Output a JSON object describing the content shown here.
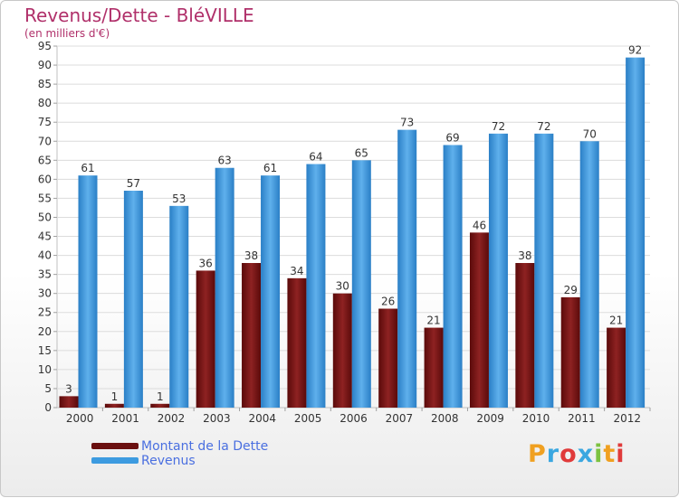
{
  "chart_data": {
    "type": "bar",
    "title": "Revenus/Dette - BléVILLE",
    "subtitle": "(en milliers d'€)",
    "categories": [
      "2000",
      "2001",
      "2002",
      "2003",
      "2004",
      "2005",
      "2006",
      "2007",
      "2008",
      "2009",
      "2010",
      "2011",
      "2012"
    ],
    "series": [
      {
        "name": "Montant de la Dette",
        "values": [
          3,
          1,
          1,
          36,
          38,
          34,
          30,
          26,
          21,
          46,
          38,
          29,
          21
        ],
        "color": "#7a1414"
      },
      {
        "name": "Revenus",
        "values": [
          61,
          57,
          53,
          63,
          61,
          64,
          65,
          73,
          69,
          72,
          72,
          70,
          92
        ],
        "color": "#3d9be0"
      }
    ],
    "ylim": [
      0,
      95
    ],
    "yticks": [
      0,
      5,
      10,
      15,
      20,
      25,
      30,
      35,
      40,
      45,
      50,
      55,
      60,
      65,
      70,
      75,
      80,
      85,
      90,
      95
    ],
    "grid": true,
    "legend_position": "bottom-left"
  },
  "logo": {
    "letters": [
      "P",
      "r",
      "o",
      "x",
      "i",
      "t",
      "i"
    ],
    "colors": [
      "#f0a020",
      "#3aa7e0",
      "#e03a3a",
      "#3aa7e0",
      "#7cc240",
      "#f0a020",
      "#e03a3a"
    ]
  }
}
